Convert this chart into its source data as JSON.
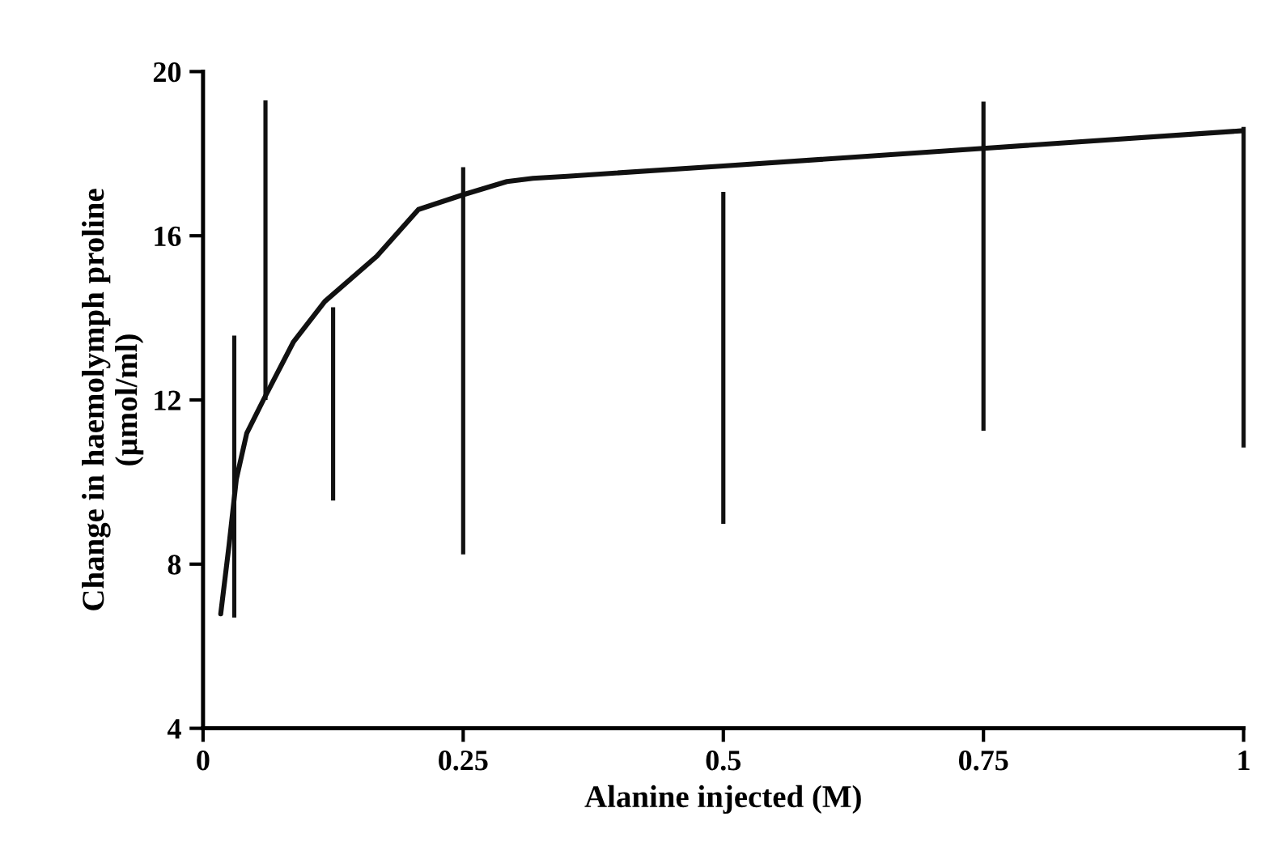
{
  "chart_data": {
    "type": "line",
    "xlabel": "Alanine injected (M)",
    "ylabel": "Change in haemolymph proline\n(µmol/ml)",
    "xlim": [
      0,
      1
    ],
    "xticks": [
      0,
      0.25,
      0.5,
      0.75,
      1
    ],
    "ylim": [
      4,
      20
    ],
    "yticks": [
      4,
      8,
      12,
      16,
      20
    ],
    "grid": false,
    "legend": false,
    "series": [
      {
        "type": "bar",
        "color": "#111111",
        "x": [
          0.03,
          0.06,
          0.125,
          0.25,
          0.5,
          0.75,
          1
        ],
        "base": [
          6.7,
          12.0,
          9.55,
          8.24,
          8.98,
          11.25,
          10.84
        ],
        "values": [
          6.87,
          7.3,
          4.71,
          9.43,
          8.09,
          8.02,
          7.81
        ]
      },
      {
        "color": "#111111",
        "line_style": "solid",
        "marker": "none",
        "x": [
          0.017,
          0.025,
          0.032,
          0.042,
          0.058,
          0.087,
          0.117,
          0.167,
          0.207,
          0.25,
          0.292,
          0.317,
          0.35,
          0.5,
          0.75,
          1.0
        ],
        "values": [
          6.79,
          8.46,
          10.07,
          11.19,
          12.0,
          13.42,
          14.4,
          15.5,
          16.64,
          17.0,
          17.32,
          17.4,
          17.45,
          17.7,
          18.13,
          18.56
        ]
      }
    ]
  }
}
